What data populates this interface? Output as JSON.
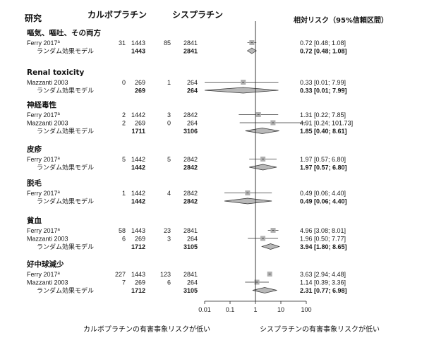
{
  "header": {
    "study": "研究",
    "carboplatin": "カルボプラチン",
    "cisplatin": "シスプラチン",
    "rr_label": "相対リスク（95%信頼区間）"
  },
  "footer": {
    "left": "カルボプラチンの有害事象リスクが低い",
    "right": "シスプラチンの有害事象リスクが低い"
  },
  "colors": {
    "square": "#b0b0b0",
    "diamond": "#b8b8b8",
    "line": "#333333"
  },
  "chart_data": {
    "type": "forest",
    "x_scale": "log",
    "xlim": [
      0.01,
      100
    ],
    "x_ticks": [
      "0.01",
      "0.1",
      "1",
      "10",
      "100"
    ],
    "reference_line": 1,
    "groups": [
      {
        "name": "嘔気、嘔吐、その両方",
        "studies": [
          {
            "name": "Ferry 2017",
            "sup": "a",
            "e1": "31",
            "n1": "1443",
            "e2": "85",
            "n2": "2841",
            "rr": 0.72,
            "lo": 0.48,
            "hi": 1.08,
            "text": "0.72  [0.48;  1.08]"
          }
        ],
        "pooled": {
          "label": "ランダム効果モデル",
          "n1": "1443",
          "n2": "2841",
          "rr": 0.72,
          "lo": 0.48,
          "hi": 1.08,
          "text": "0.72  [0.48;  1.08]"
        }
      },
      {
        "name": "Renal toxicity",
        "studies": [
          {
            "name": "Mazzanti 2003",
            "sup": "",
            "e1": "0",
            "n1": "269",
            "e2": "1",
            "n2": "264",
            "rr": 0.33,
            "lo": 0.01,
            "hi": 7.99,
            "text": "0.33  [0.01;  7.99]"
          }
        ],
        "pooled": {
          "label": "ランダム効果モデル",
          "n1": "269",
          "n2": "264",
          "rr": 0.33,
          "lo": 0.01,
          "hi": 7.99,
          "text": "0.33  [0.01;  7.99]"
        }
      },
      {
        "name": "神経毒性",
        "studies": [
          {
            "name": "Ferry 2017",
            "sup": "a",
            "e1": "2",
            "n1": "1442",
            "e2": "3",
            "n2": "2842",
            "rr": 1.31,
            "lo": 0.22,
            "hi": 7.85,
            "text": "1.31  [0.22;  7.85]"
          },
          {
            "name": "Mazzanti 2003",
            "sup": "",
            "e1": "2",
            "n1": "269",
            "e2": "0",
            "n2": "264",
            "rr": 4.91,
            "lo": 0.24,
            "hi": 101.73,
            "text": "4.91  [0.24; 101.73]"
          }
        ],
        "pooled": {
          "label": "ランダム効果モデル",
          "n1": "1711",
          "n2": "3106",
          "rr": 1.85,
          "lo": 0.4,
          "hi": 8.61,
          "text": "1.85  [0.40;  8.61]"
        }
      },
      {
        "name": "皮疹",
        "studies": [
          {
            "name": "Ferry 2017",
            "sup": "a",
            "e1": "5",
            "n1": "1442",
            "e2": "5",
            "n2": "2842",
            "rr": 1.97,
            "lo": 0.57,
            "hi": 6.8,
            "text": "1.97  [0.57;  6.80]"
          }
        ],
        "pooled": {
          "label": "ランダム効果モデル",
          "n1": "1442",
          "n2": "2842",
          "rr": 1.97,
          "lo": 0.57,
          "hi": 6.8,
          "text": "1.97  [0.57;  6.80]"
        }
      },
      {
        "name": "脱毛",
        "studies": [
          {
            "name": "Ferry 2017",
            "sup": "a",
            "e1": "1",
            "n1": "1442",
            "e2": "4",
            "n2": "2842",
            "rr": 0.49,
            "lo": 0.06,
            "hi": 4.4,
            "text": "0.49  [0.06;  4.40]"
          }
        ],
        "pooled": {
          "label": "ランダム効果モデル",
          "n1": "1442",
          "n2": "2842",
          "rr": 0.49,
          "lo": 0.06,
          "hi": 4.4,
          "text": "0.49  [0.06;  4.40]"
        }
      },
      {
        "name": "貧血",
        "studies": [
          {
            "name": "Ferry 2017",
            "sup": "a",
            "e1": "58",
            "n1": "1443",
            "e2": "23",
            "n2": "2841",
            "rr": 4.96,
            "lo": 3.08,
            "hi": 8.01,
            "text": "4.96  [3.08;  8.01]"
          },
          {
            "name": "Mazzanti 2003",
            "sup": "",
            "e1": "6",
            "n1": "269",
            "e2": "3",
            "n2": "264",
            "rr": 1.96,
            "lo": 0.5,
            "hi": 7.77,
            "text": "1.96  [0.50;  7.77]"
          }
        ],
        "pooled": {
          "label": "ランダム効果モデル",
          "n1": "1712",
          "n2": "3105",
          "rr": 3.94,
          "lo": 1.8,
          "hi": 8.65,
          "text": "3.94  [1.80;  8.65]"
        }
      },
      {
        "name": "好中球減少",
        "studies": [
          {
            "name": "Ferry 2017",
            "sup": "a",
            "e1": "227",
            "n1": "1443",
            "e2": "123",
            "n2": "2841",
            "rr": 3.63,
            "lo": 2.94,
            "hi": 4.48,
            "text": "3.63  [2.94;  4.48]"
          },
          {
            "name": "Mazzanti 2003",
            "sup": "",
            "e1": "7",
            "n1": "269",
            "e2": "6",
            "n2": "264",
            "rr": 1.14,
            "lo": 0.39,
            "hi": 3.36,
            "text": "1.14  [0.39;  3.36]"
          }
        ],
        "pooled": {
          "label": "ランダム効果モデル",
          "n1": "1712",
          "n2": "3105",
          "rr": 2.31,
          "lo": 0.77,
          "hi": 6.98,
          "text": "2.31  [0.77;  6.98]"
        }
      }
    ]
  }
}
